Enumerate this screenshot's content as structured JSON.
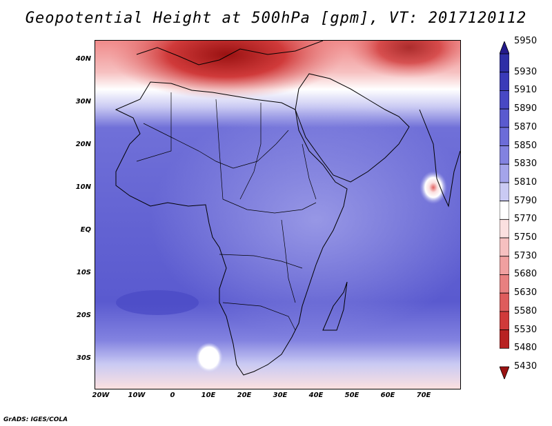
{
  "title": "Geopotential Height at 500hPa [gpm], VT: 2017120112",
  "lat_labels": [
    "40N",
    "30N",
    "20N",
    "10N",
    "EQ",
    "10S",
    "20S",
    "30S"
  ],
  "lon_labels": [
    "20W",
    "10W",
    "0",
    "10E",
    "20E",
    "30E",
    "40E",
    "50E",
    "60E",
    "70E"
  ],
  "colorbar": {
    "levels": [
      "5950",
      "5930",
      "5910",
      "5890",
      "5870",
      "5850",
      "5830",
      "5810",
      "5790",
      "5770",
      "5750",
      "5730",
      "5680",
      "5630",
      "5580",
      "5530",
      "5480",
      "5430"
    ],
    "colors": [
      "#241a8c",
      "#2e2ea6",
      "#3a3ab8",
      "#4848c4",
      "#5a5acf",
      "#6c6cd8",
      "#8282e0",
      "#a4a4ea",
      "#cacaf3",
      "#ffffff",
      "#fbe0e0",
      "#f6c0c0",
      "#f0a0a0",
      "#e88080",
      "#de5c5c",
      "#d03a3a",
      "#b82222",
      "#9a1212"
    ]
  },
  "credit": "GrADS: IGES/COLA"
}
